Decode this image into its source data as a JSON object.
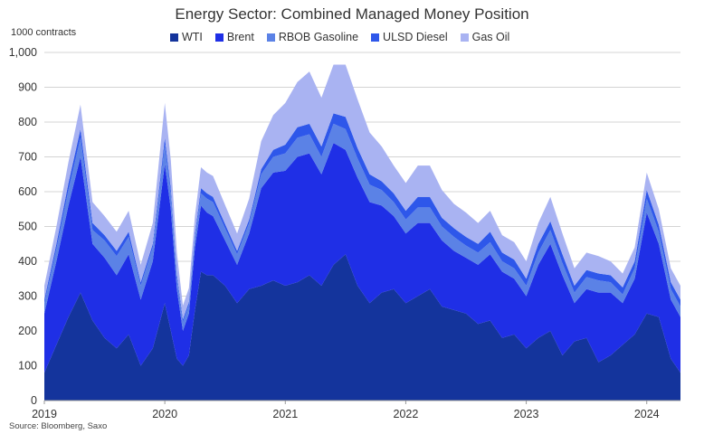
{
  "chart_data": {
    "type": "area",
    "stacked": true,
    "title": "Energy Sector: Combined Managed Money Position",
    "ylabel": "1000 contracts",
    "source": "Source: Bloomberg, Saxo",
    "ylim": [
      0,
      1000
    ],
    "yticks": [
      "0",
      "100",
      "200",
      "300",
      "400",
      "500",
      "600",
      "700",
      "800",
      "900",
      "1,000"
    ],
    "xticks": [
      "2019",
      "2020",
      "2021",
      "2022",
      "2023",
      "2024"
    ],
    "xlim": [
      2019.0,
      2024.28
    ],
    "legend_position": "top",
    "grid": "horizontal",
    "x": [
      2019.0,
      2019.1,
      2019.2,
      2019.3,
      2019.4,
      2019.5,
      2019.6,
      2019.7,
      2019.8,
      2019.9,
      2020.0,
      2020.05,
      2020.1,
      2020.15,
      2020.2,
      2020.25,
      2020.3,
      2020.35,
      2020.4,
      2020.5,
      2020.6,
      2020.7,
      2020.8,
      2020.9,
      2021.0,
      2021.1,
      2021.2,
      2021.3,
      2021.4,
      2021.5,
      2021.6,
      2021.7,
      2021.8,
      2021.9,
      2022.0,
      2022.1,
      2022.2,
      2022.3,
      2022.4,
      2022.5,
      2022.6,
      2022.7,
      2022.8,
      2022.9,
      2023.0,
      2023.1,
      2023.2,
      2023.3,
      2023.4,
      2023.5,
      2023.6,
      2023.7,
      2023.8,
      2023.9,
      2024.0,
      2024.1,
      2024.2,
      2024.28
    ],
    "series": [
      {
        "name": "WTI",
        "color": "#14349c",
        "values": [
          80,
          160,
          240,
          310,
          230,
          180,
          150,
          190,
          100,
          150,
          280,
          200,
          120,
          100,
          130,
          260,
          370,
          360,
          360,
          330,
          280,
          320,
          330,
          345,
          330,
          340,
          360,
          330,
          390,
          420,
          330,
          280,
          310,
          320,
          280,
          300,
          320,
          270,
          260,
          250,
          220,
          230,
          180,
          190,
          150,
          180,
          200,
          130,
          170,
          180,
          110,
          130,
          160,
          190,
          250,
          240,
          120,
          80
        ]
      },
      {
        "name": "Brent",
        "color": "#1f2fe6",
        "values": [
          170,
          240,
          320,
          390,
          220,
          230,
          210,
          230,
          190,
          250,
          400,
          350,
          200,
          100,
          120,
          180,
          190,
          180,
          170,
          130,
          110,
          160,
          280,
          310,
          330,
          360,
          350,
          320,
          350,
          300,
          310,
          290,
          250,
          210,
          200,
          210,
          190,
          190,
          170,
          160,
          170,
          190,
          190,
          160,
          150,
          210,
          250,
          230,
          110,
          140,
          200,
          180,
          120,
          160,
          290,
          210,
          170,
          160
        ]
      },
      {
        "name": "RBOB Gasoline",
        "color": "#5b82e6",
        "values": [
          30,
          35,
          45,
          55,
          40,
          50,
          55,
          50,
          40,
          40,
          55,
          45,
          35,
          25,
          25,
          30,
          35,
          40,
          40,
          35,
          30,
          30,
          40,
          45,
          50,
          55,
          55,
          50,
          55,
          60,
          55,
          50,
          45,
          40,
          40,
          45,
          45,
          40,
          40,
          35,
          35,
          35,
          30,
          30,
          30,
          35,
          40,
          35,
          30,
          35,
          35,
          30,
          25,
          30,
          40,
          35,
          30,
          30
        ]
      },
      {
        "name": "ULSD Diesel",
        "color": "#2e57ea",
        "values": [
          10,
          15,
          20,
          25,
          20,
          15,
          15,
          15,
          10,
          10,
          20,
          15,
          10,
          8,
          8,
          10,
          15,
          15,
          15,
          12,
          10,
          10,
          15,
          20,
          25,
          30,
          30,
          30,
          30,
          35,
          30,
          30,
          25,
          25,
          25,
          30,
          30,
          25,
          25,
          25,
          25,
          30,
          25,
          25,
          20,
          25,
          25,
          25,
          20,
          20,
          20,
          20,
          20,
          20,
          25,
          20,
          20,
          20
        ]
      },
      {
        "name": "Gas Oil",
        "color": "#a9b3f2",
        "values": [
          40,
          50,
          60,
          70,
          60,
          55,
          55,
          60,
          50,
          60,
          100,
          80,
          60,
          40,
          40,
          50,
          60,
          60,
          60,
          55,
          50,
          60,
          80,
          100,
          120,
          130,
          150,
          140,
          140,
          150,
          140,
          120,
          100,
          80,
          80,
          90,
          90,
          80,
          70,
          70,
          60,
          60,
          50,
          50,
          50,
          60,
          70,
          60,
          50,
          50,
          50,
          40,
          40,
          40,
          50,
          45,
          40,
          40
        ]
      }
    ]
  }
}
